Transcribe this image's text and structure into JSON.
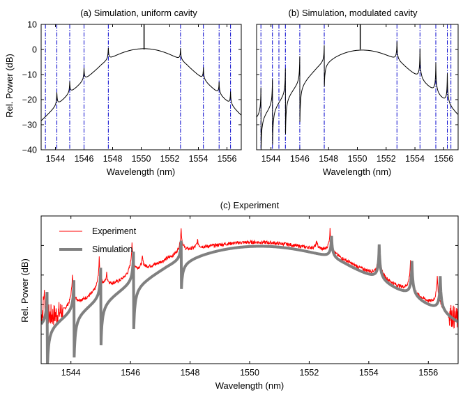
{
  "chart_data": [
    {
      "id": "a",
      "type": "line",
      "title": "(a) Simulation, uniform cavity",
      "xlabel": "Wavelength (nm)",
      "ylabel": "Rel. Power (dB)",
      "xlim": [
        1543,
        1557
      ],
      "ylim": [
        -40,
        10
      ],
      "xticks": [
        1544,
        1546,
        1548,
        1550,
        1552,
        1554,
        1556
      ],
      "xtick_labels": [
        "1544",
        "1546",
        "1548",
        "1550",
        "1552",
        "1554",
        "1556"
      ],
      "yticks": [
        -40,
        -30,
        -20,
        -10,
        0,
        10
      ],
      "ytick_labels": [
        "−40",
        "−30",
        "−20",
        "−10",
        "0",
        "10"
      ],
      "mode_lines": [
        1543.3,
        1544.1,
        1545.0,
        1546.0,
        1547.7,
        1552.75,
        1554.35,
        1555.45,
        1556.25
      ],
      "series": [
        {
          "name": "Simulation",
          "color": "#000000",
          "envelope": {
            "center": 1550.2,
            "curvature": 0.75,
            "shoulder_x": 3.0,
            "slope": 5.25
          },
          "resonances": [
            {
              "x": 1544.1,
              "height": 3.5,
              "dir": 1
            },
            {
              "x": 1545.0,
              "height": 3.2,
              "dir": 1
            },
            {
              "x": 1546.0,
              "height": 3.3,
              "dir": 1
            },
            {
              "x": 1547.7,
              "height": 3.2,
              "dir": 1
            },
            {
              "x": 1552.75,
              "height": 3.2,
              "dir": 1
            },
            {
              "x": 1554.35,
              "height": 3.3,
              "dir": 1
            },
            {
              "x": 1555.45,
              "height": 3.2,
              "dir": 1
            },
            {
              "x": 1556.25,
              "height": 3.5,
              "dir": 1
            }
          ],
          "center_spike": {
            "x": 1550.2,
            "top": 10
          }
        }
      ]
    },
    {
      "id": "b",
      "type": "line",
      "title": "(b) Simulation, modulated cavity",
      "xlabel": "Wavelength (nm)",
      "ylabel": "",
      "xlim": [
        1543,
        1557
      ],
      "ylim": [
        -40,
        10
      ],
      "xticks": [
        1544,
        1546,
        1548,
        1550,
        1552,
        1554,
        1556
      ],
      "xtick_labels": [
        "1544",
        "1546",
        "1548",
        "1550",
        "1552",
        "1554",
        "1556"
      ],
      "yticks": [
        -40,
        -30,
        -20,
        -10,
        0,
        10
      ],
      "mode_lines": [
        1543.3,
        1544.1,
        1544.55,
        1545.0,
        1546.0,
        1547.7,
        1552.75,
        1554.35,
        1555.45,
        1556.25,
        1556.5
      ],
      "series": [
        {
          "name": "Simulation",
          "color": "#000000",
          "envelope": {
            "center": 1550.2,
            "curvature": 0.75,
            "shoulder_x": 3.0,
            "slope": 5.25
          },
          "resonances": [
            {
              "x": 1543.3,
              "height": 8,
              "dir": -1
            },
            {
              "x": 1544.1,
              "height": 8,
              "dir": -1
            },
            {
              "x": 1545.0,
              "height": 8,
              "dir": -1
            },
            {
              "x": 1546.0,
              "height": 8,
              "dir": -1
            },
            {
              "x": 1547.7,
              "height": 5,
              "dir": -1
            },
            {
              "x": 1552.75,
              "height": 5,
              "dir": 1
            },
            {
              "x": 1554.35,
              "height": 8,
              "dir": 1
            },
            {
              "x": 1555.45,
              "height": 8,
              "dir": 1
            },
            {
              "x": 1556.25,
              "height": 8,
              "dir": 1
            }
          ],
          "center_spike": {
            "x": 1550.2,
            "top": 10
          }
        }
      ]
    },
    {
      "id": "c",
      "type": "line",
      "title": "(c) Experiment",
      "xlabel": "Wavelength (nm)",
      "ylabel": "Rel. Power (dB)",
      "xlim": [
        1543,
        1557
      ],
      "ylim": [
        -40,
        10
      ],
      "xticks": [
        1544,
        1546,
        1548,
        1550,
        1552,
        1554,
        1556
      ],
      "xtick_labels": [
        "1544",
        "1546",
        "1548",
        "1550",
        "1552",
        "1554",
        "1556"
      ],
      "yticks": [
        -40,
        -30,
        -20,
        -10,
        0,
        10
      ],
      "legend": {
        "placement": "top-left",
        "entries": [
          "Experiment",
          "Simulation"
        ]
      },
      "series": [
        {
          "name": "Experiment",
          "color": "#ff0000",
          "noise_floor_db": -37,
          "resonances": [
            {
              "x": 1543.1,
              "height": 8,
              "dir": 1
            },
            {
              "x": 1544.05,
              "height": 8,
              "dir": 1
            },
            {
              "x": 1544.95,
              "height": 8,
              "dir": 1
            },
            {
              "x": 1545.2,
              "height": 3,
              "dir": 1
            },
            {
              "x": 1546.05,
              "height": 8,
              "dir": 1
            },
            {
              "x": 1546.4,
              "height": 3,
              "dir": 1
            },
            {
              "x": 1547.7,
              "height": 6,
              "dir": 1
            },
            {
              "x": 1548.25,
              "height": 2,
              "dir": 1
            },
            {
              "x": 1552.25,
              "height": 2,
              "dir": 1
            },
            {
              "x": 1552.7,
              "height": 6,
              "dir": 1
            },
            {
              "x": 1554.35,
              "height": 8,
              "dir": 1
            },
            {
              "x": 1555.4,
              "height": 8,
              "dir": 1
            },
            {
              "x": 1556.3,
              "height": 8,
              "dir": 1
            }
          ]
        },
        {
          "name": "Simulation",
          "color": "#808080",
          "envelope": {
            "center": 1550.2,
            "curvature": 0.75,
            "shoulder_x": 3.0,
            "slope": 5.25
          },
          "resonances": [
            {
              "x": 1543.2,
              "height": 8,
              "dir": -1
            },
            {
              "x": 1544.1,
              "height": 8,
              "dir": -1
            },
            {
              "x": 1545.0,
              "height": 8,
              "dir": -1
            },
            {
              "x": 1546.1,
              "height": 8,
              "dir": -1
            },
            {
              "x": 1547.7,
              "height": 5,
              "dir": -1
            },
            {
              "x": 1552.75,
              "height": 5,
              "dir": 1
            },
            {
              "x": 1554.35,
              "height": 8,
              "dir": 1
            },
            {
              "x": 1555.45,
              "height": 8,
              "dir": 1
            },
            {
              "x": 1556.4,
              "height": 8,
              "dir": 1
            }
          ]
        }
      ]
    }
  ]
}
